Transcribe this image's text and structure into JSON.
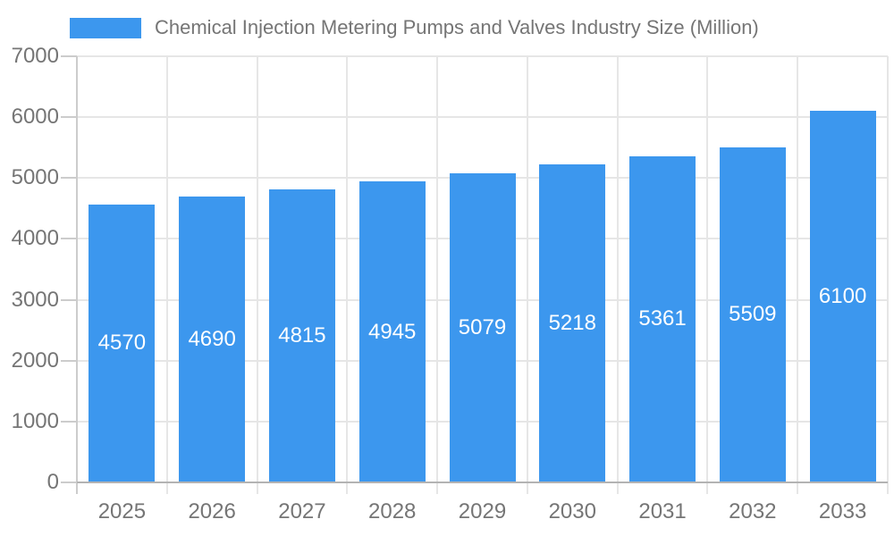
{
  "chart_data": {
    "type": "bar",
    "title": "Chemical Injection Metering Pumps and Valves Industry Size (Million)",
    "categories": [
      "2025",
      "2026",
      "2027",
      "2028",
      "2029",
      "2030",
      "2031",
      "2032",
      "2033"
    ],
    "values": [
      4570,
      4690,
      4815,
      4945,
      5079,
      5218,
      5361,
      5509,
      6100
    ],
    "yticks": [
      0,
      1000,
      2000,
      3000,
      4000,
      5000,
      6000,
      7000
    ],
    "ylim": [
      0,
      7000
    ],
    "xlabel": "",
    "ylabel": "",
    "legend_position": "top",
    "grid": true,
    "bar_value_labels": "inside-center",
    "colors": {
      "bar": "#3C97EE",
      "bar_label": "#FFFFFF",
      "axis_text": "#757575",
      "title_text": "#757575",
      "gridline": "#E6E6E6",
      "axis_line": "#B3B3B3",
      "tick_line": "#CCCCCC",
      "background": "#FFFFFF"
    }
  }
}
